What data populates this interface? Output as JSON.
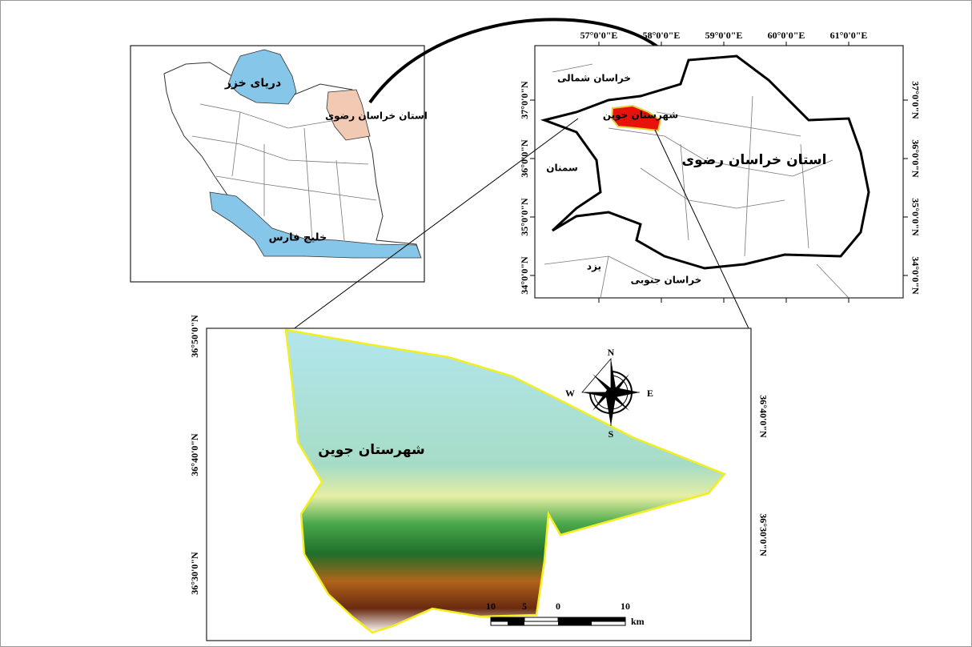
{
  "iran_inset": {
    "labels": [
      "دریای خزر",
      "استان خراسان رضوی",
      "خلیج فارس"
    ]
  },
  "province_map": {
    "labels": [
      "خراسان شمالی",
      "شهرستان جوین",
      "سمنان",
      "استان خراسان رضوی",
      "یزد",
      "خراسان جنوبی"
    ],
    "longitude_ticks": [
      "57°0'0\"E",
      "58°0'0\"E",
      "59°0'0\"E",
      "60°0'0\"E",
      "61°0'0\"E"
    ],
    "latitude_ticks": [
      "37°0'0\"N",
      "36°0'0\"N",
      "35°0'0\"N",
      "34°0'0\"N"
    ]
  },
  "study_area_map": {
    "label": "شهرستان جوین",
    "latitude_ticks_left": [
      "36°50'0\"N",
      "36°40'0\"N",
      "36°30'0\"N"
    ],
    "latitude_ticks_right": [
      "36°40'0\"N",
      "36°30'0\"N"
    ],
    "compass": [
      "N",
      "E",
      "S",
      "W"
    ],
    "scale_bar": {
      "labels": [
        10,
        5,
        0,
        10
      ],
      "unit": "km"
    }
  }
}
